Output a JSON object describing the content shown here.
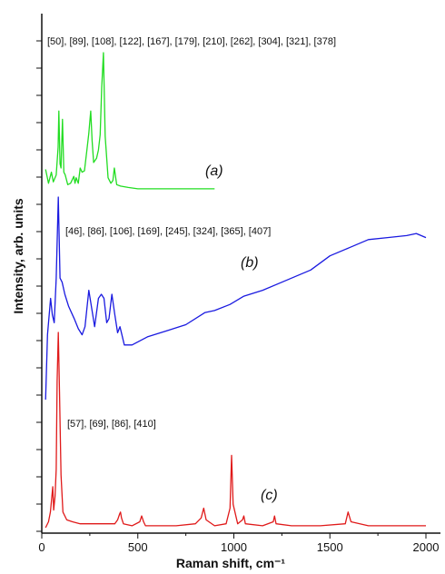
{
  "chart_data": {
    "type": "line",
    "xlabel": "Raman shift, cm⁻¹",
    "ylabel": "Intensity, arb. units",
    "xlim": [
      0,
      2000
    ],
    "x_ticks": [
      "0",
      "500",
      "1000",
      "1500",
      "2000"
    ],
    "grid": false,
    "legend": "none",
    "series": [
      {
        "name": "(a)",
        "color": "#22dd22",
        "peak_list": "[50], [89], [108], [122], [167], [179], [210], [262], [304], [321], [378]",
        "x": [
          20,
          35,
          50,
          60,
          75,
          85,
          89,
          95,
          100,
          108,
          115,
          122,
          135,
          150,
          167,
          173,
          179,
          190,
          200,
          210,
          222,
          235,
          245,
          255,
          262,
          270,
          285,
          295,
          304,
          312,
          321,
          330,
          345,
          360,
          370,
          378,
          390,
          410,
          450,
          500,
          600,
          700,
          800,
          900
        ],
        "values": [
          0.16,
          0.06,
          0.14,
          0.07,
          0.12,
          0.32,
          0.58,
          0.2,
          0.17,
          0.52,
          0.14,
          0.12,
          0.05,
          0.06,
          0.11,
          0.06,
          0.1,
          0.06,
          0.17,
          0.14,
          0.15,
          0.3,
          0.42,
          0.58,
          0.37,
          0.21,
          0.24,
          0.3,
          0.41,
          0.75,
          1.0,
          0.4,
          0.1,
          0.06,
          0.08,
          0.17,
          0.05,
          0.04,
          0.03,
          0.02,
          0.02,
          0.02,
          0.02,
          0.02
        ]
      },
      {
        "name": "(b)",
        "color": "#1a1ae0",
        "peak_list": "[46], [86], [106], [169], [245], [324], [365], [407]",
        "x": [
          20,
          30,
          46,
          55,
          65,
          75,
          86,
          95,
          106,
          120,
          140,
          169,
          190,
          210,
          225,
          245,
          260,
          275,
          295,
          310,
          324,
          338,
          350,
          365,
          380,
          395,
          407,
          430,
          470,
          550,
          650,
          750,
          850,
          900,
          980,
          1050,
          1150,
          1250,
          1400,
          1500,
          1600,
          1700,
          1800,
          1900,
          1950,
          2000
        ],
        "values": [
          0.0,
          0.32,
          0.5,
          0.42,
          0.38,
          0.6,
          1.0,
          0.6,
          0.58,
          0.52,
          0.46,
          0.4,
          0.35,
          0.32,
          0.36,
          0.54,
          0.45,
          0.36,
          0.5,
          0.52,
          0.5,
          0.38,
          0.4,
          0.52,
          0.42,
          0.33,
          0.36,
          0.27,
          0.27,
          0.31,
          0.34,
          0.37,
          0.43,
          0.44,
          0.47,
          0.51,
          0.54,
          0.58,
          0.64,
          0.71,
          0.75,
          0.79,
          0.8,
          0.81,
          0.82,
          0.8
        ]
      },
      {
        "name": "(c)",
        "color": "#e01a1a",
        "peak_list": "[57], [69], [86], [410]",
        "x": [
          20,
          35,
          45,
          57,
          62,
          69,
          75,
          80,
          86,
          92,
          100,
          110,
          130,
          160,
          200,
          300,
          380,
          395,
          405,
          410,
          415,
          425,
          470,
          510,
          520,
          530,
          540,
          600,
          700,
          800,
          830,
          843,
          856,
          900,
          960,
          980,
          988,
          996,
          1020,
          1045,
          1052,
          1060,
          1150,
          1205,
          1212,
          1220,
          1300,
          1450,
          1580,
          1595,
          1610,
          1700,
          1850,
          1950,
          2000
        ],
        "values": [
          0.0,
          0.03,
          0.08,
          0.21,
          0.09,
          0.16,
          0.3,
          0.75,
          1.0,
          0.7,
          0.27,
          0.08,
          0.04,
          0.03,
          0.02,
          0.02,
          0.02,
          0.04,
          0.07,
          0.08,
          0.05,
          0.02,
          0.01,
          0.03,
          0.06,
          0.03,
          0.01,
          0.01,
          0.01,
          0.02,
          0.05,
          0.1,
          0.04,
          0.01,
          0.02,
          0.1,
          0.37,
          0.12,
          0.02,
          0.04,
          0.06,
          0.02,
          0.01,
          0.03,
          0.06,
          0.02,
          0.01,
          0.01,
          0.02,
          0.08,
          0.03,
          0.01,
          0.01,
          0.01,
          0.01
        ]
      }
    ]
  }
}
